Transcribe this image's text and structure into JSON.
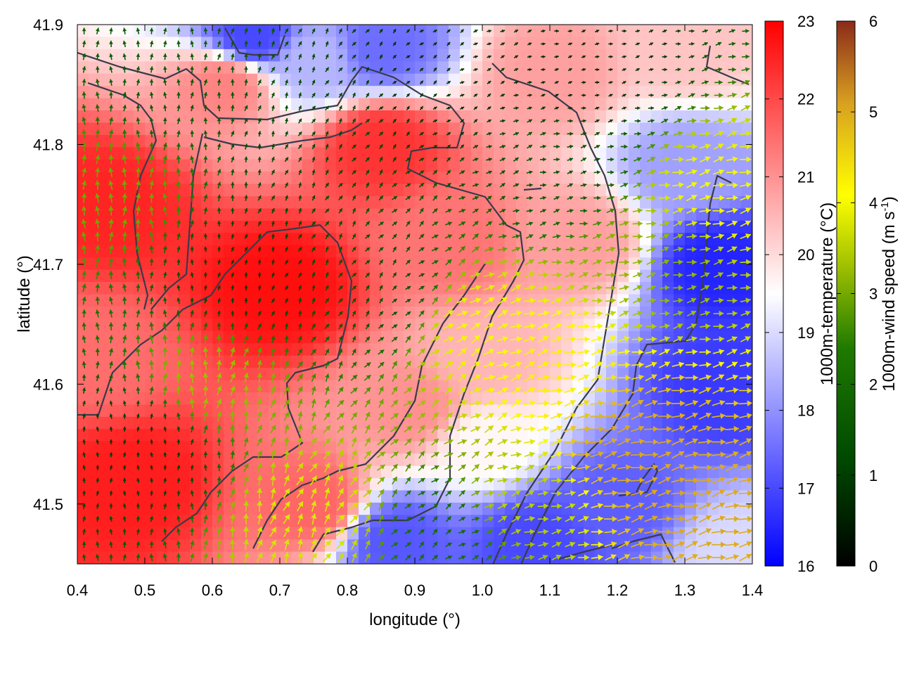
{
  "chart_data": {
    "type": "heatmap",
    "subtype": "vector-field-over-temperature-map",
    "xlabel": "longitude (°)",
    "ylabel": "latitude (°)",
    "xlim": [
      0.4,
      1.4
    ],
    "ylim": [
      41.45,
      41.9
    ],
    "xticks": [
      "0.4",
      "0.5",
      "0.6",
      "0.7",
      "0.8",
      "0.9",
      "1.0",
      "1.1",
      "1.2",
      "1.3",
      "1.4"
    ],
    "yticks": [
      "41.5",
      "41.6",
      "41.7",
      "41.8",
      "41.9"
    ],
    "temperature_colorbar": {
      "label": "1000m-temperature (°C)",
      "range": [
        16,
        23
      ],
      "ticks": [
        "16",
        "17",
        "18",
        "19",
        "20",
        "21",
        "22",
        "23"
      ],
      "colors": [
        "#0000ff",
        "#ffffff",
        "#ff0000"
      ]
    },
    "wind_colorbar": {
      "label": "1000m-wind speed (m s",
      "label_sup": "-1",
      "label_end": ")",
      "range": [
        0,
        6
      ],
      "ticks": [
        "0",
        "1",
        "2",
        "3",
        "4",
        "5",
        "6"
      ],
      "colors": [
        "#000000",
        "#005a00",
        "#7fb000",
        "#ffff00",
        "#d4a020",
        "#8b2a1a"
      ]
    },
    "grid": false,
    "legend": "none",
    "temperature_field_samples": [
      {
        "lon": 0.45,
        "lat": 41.75,
        "temp": 22.5
      },
      {
        "lon": 0.48,
        "lat": 41.52,
        "temp": 22.6
      },
      {
        "lon": 0.7,
        "lat": 41.68,
        "temp": 22.8
      },
      {
        "lon": 0.85,
        "lat": 41.8,
        "temp": 22.3
      },
      {
        "lon": 0.62,
        "lat": 41.85,
        "temp": 21.2
      },
      {
        "lon": 0.43,
        "lat": 41.62,
        "temp": 21.5
      },
      {
        "lon": 0.75,
        "lat": 41.5,
        "temp": 21.6
      },
      {
        "lon": 0.9,
        "lat": 41.58,
        "temp": 21.0
      },
      {
        "lon": 0.95,
        "lat": 41.72,
        "temp": 21.4
      },
      {
        "lon": 1.1,
        "lat": 41.86,
        "temp": 20.8
      },
      {
        "lon": 1.3,
        "lat": 41.88,
        "temp": 20.3
      },
      {
        "lon": 0.66,
        "lat": 41.89,
        "temp": 17.0
      },
      {
        "lon": 0.85,
        "lat": 41.88,
        "temp": 17.5
      },
      {
        "lon": 0.75,
        "lat": 41.87,
        "temp": 18.5
      },
      {
        "lon": 1.35,
        "lat": 41.7,
        "temp": 16.5
      },
      {
        "lon": 1.36,
        "lat": 41.6,
        "temp": 16.8
      },
      {
        "lon": 1.3,
        "lat": 41.78,
        "temp": 18.2
      },
      {
        "lon": 1.2,
        "lat": 41.5,
        "temp": 17.3
      },
      {
        "lon": 1.08,
        "lat": 41.47,
        "temp": 17.0
      },
      {
        "lon": 0.87,
        "lat": 41.47,
        "temp": 17.2
      },
      {
        "lon": 1.0,
        "lat": 41.55,
        "temp": 19.6
      },
      {
        "lon": 1.0,
        "lat": 41.62,
        "temp": 20.5
      },
      {
        "lon": 1.15,
        "lat": 41.72,
        "temp": 20.8
      },
      {
        "lon": 1.38,
        "lat": 41.46,
        "temp": 19.0
      }
    ],
    "wind_speed_samples": [
      {
        "lon": 0.45,
        "lat": 41.76,
        "speed": 3.0
      },
      {
        "lon": 0.6,
        "lat": 41.6,
        "speed": 3.3
      },
      {
        "lon": 0.75,
        "lat": 41.49,
        "speed": 3.8
      },
      {
        "lon": 0.55,
        "lat": 41.85,
        "speed": 1.6
      },
      {
        "lon": 0.75,
        "lat": 41.8,
        "speed": 1.2
      },
      {
        "lon": 0.95,
        "lat": 41.85,
        "speed": 0.8
      },
      {
        "lon": 1.15,
        "lat": 41.86,
        "speed": 0.7
      },
      {
        "lon": 1.1,
        "lat": 41.78,
        "speed": 1.5
      },
      {
        "lon": 0.5,
        "lat": 41.55,
        "speed": 0.9
      },
      {
        "lon": 0.65,
        "lat": 41.69,
        "speed": 1.0
      },
      {
        "lon": 0.85,
        "lat": 41.68,
        "speed": 1.4
      },
      {
        "lon": 1.0,
        "lat": 41.65,
        "speed": 4.0
      },
      {
        "lon": 1.1,
        "lat": 41.62,
        "speed": 4.2
      },
      {
        "lon": 1.22,
        "lat": 41.55,
        "speed": 5.0
      },
      {
        "lon": 1.3,
        "lat": 41.5,
        "speed": 5.0
      },
      {
        "lon": 1.25,
        "lat": 41.7,
        "speed": 3.2
      },
      {
        "lon": 1.35,
        "lat": 41.76,
        "speed": 4.0
      },
      {
        "lon": 0.95,
        "lat": 41.48,
        "speed": 2.0
      },
      {
        "lon": 1.05,
        "lat": 41.5,
        "speed": 3.5
      }
    ],
    "wind_direction_note": "predominantly northerly in west half, easterly/east-northeast in east half"
  }
}
